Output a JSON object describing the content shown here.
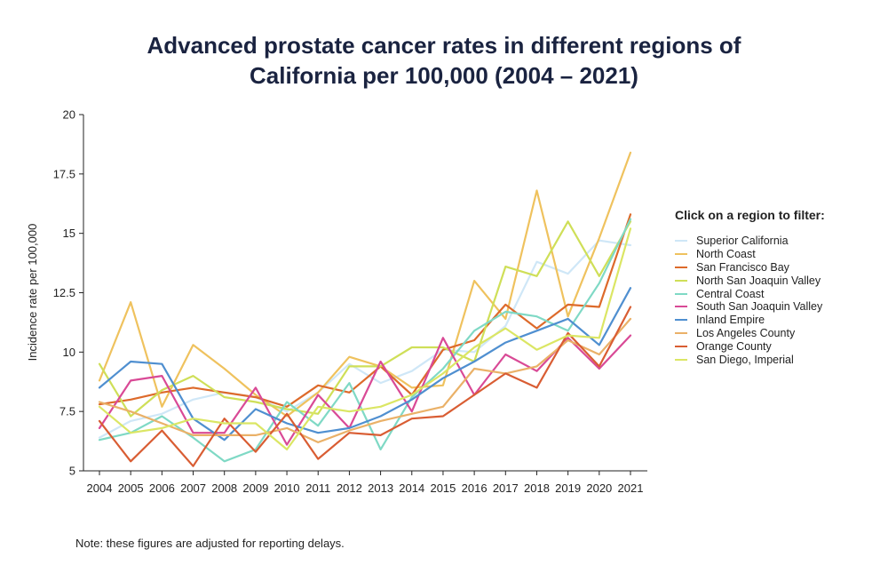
{
  "title_line1": "Advanced prostate cancer rates in different regions of",
  "title_line2": "California per 100,000 (2004 – 2021)",
  "legend_title": "Click on a region to filter:",
  "note": "Note: these figures are adjusted for reporting delays.",
  "chart_data": {
    "type": "line",
    "title": "Advanced prostate cancer rates in different regions of California per 100,000 (2004 – 2021)",
    "xlabel": "",
    "ylabel": "Incidence rate per 100,000",
    "ylim": [
      5,
      20
    ],
    "yticks": [
      5,
      7.5,
      10,
      12.5,
      15,
      17.5,
      20
    ],
    "ytick_labels": [
      "5",
      "7.5",
      "10",
      "12.5",
      "15",
      "17.5",
      "20"
    ],
    "x": [
      "2004",
      "2005",
      "2006",
      "2007",
      "2008",
      "2009",
      "2010",
      "2011",
      "2012",
      "2013",
      "2014",
      "2015",
      "2016",
      "2017",
      "2018",
      "2019",
      "2020",
      "2021"
    ],
    "legend_position": "right",
    "series": [
      {
        "name": "Superior California",
        "color": "#cfe7f7",
        "values": [
          6.4,
          7.1,
          7.4,
          8.0,
          8.3,
          8.1,
          7.5,
          8.3,
          9.5,
          8.7,
          9.2,
          10.1,
          10.0,
          11.1,
          13.8,
          13.3,
          14.7,
          14.5
        ]
      },
      {
        "name": "North Coast",
        "color": "#efc25e",
        "values": [
          8.8,
          12.1,
          7.7,
          10.3,
          9.3,
          8.2,
          7.3,
          8.3,
          9.8,
          9.4,
          8.5,
          8.6,
          13.0,
          11.4,
          16.8,
          11.5,
          14.8,
          18.4
        ]
      },
      {
        "name": "San Francisco Bay",
        "color": "#dd6a2b",
        "values": [
          7.8,
          8.0,
          8.3,
          8.5,
          8.3,
          8.1,
          7.7,
          8.6,
          8.3,
          9.4,
          8.2,
          10.1,
          10.5,
          12.0,
          11.0,
          12.0,
          11.9,
          15.8
        ]
      },
      {
        "name": "North San Joaquin Valley",
        "color": "#cfdf58",
        "values": [
          9.5,
          7.3,
          8.4,
          9.0,
          8.1,
          7.9,
          7.6,
          7.4,
          9.4,
          9.4,
          10.2,
          10.2,
          9.6,
          13.6,
          13.2,
          15.5,
          13.2,
          15.5
        ]
      },
      {
        "name": "Central Coast",
        "color": "#7fd9c5",
        "values": [
          6.3,
          6.6,
          7.3,
          6.4,
          5.4,
          5.9,
          7.9,
          6.9,
          8.7,
          5.9,
          8.1,
          9.3,
          10.9,
          11.7,
          11.5,
          10.9,
          12.9,
          15.6
        ]
      },
      {
        "name": "South San Joaquin Valley",
        "color": "#d94a96",
        "values": [
          6.8,
          8.8,
          9.0,
          6.6,
          6.6,
          8.5,
          6.1,
          8.2,
          6.8,
          9.6,
          7.5,
          10.6,
          8.2,
          9.9,
          9.2,
          10.6,
          9.3,
          10.7
        ]
      },
      {
        "name": "Inland Empire",
        "color": "#4f8fd0",
        "values": [
          8.5,
          9.6,
          9.5,
          7.2,
          6.3,
          7.6,
          7.0,
          6.6,
          6.8,
          7.3,
          8.0,
          8.9,
          9.6,
          10.4,
          10.9,
          11.4,
          10.3,
          12.7
        ]
      },
      {
        "name": "Los Angeles County",
        "color": "#eab168",
        "values": [
          7.9,
          7.5,
          7.0,
          6.5,
          6.5,
          6.5,
          6.8,
          6.2,
          6.7,
          7.1,
          7.4,
          7.7,
          9.3,
          9.1,
          9.4,
          10.5,
          9.9,
          11.4
        ]
      },
      {
        "name": "Orange County",
        "color": "#d95d33",
        "values": [
          7.1,
          5.4,
          6.7,
          5.2,
          7.2,
          5.8,
          7.4,
          5.5,
          6.6,
          6.5,
          7.2,
          7.3,
          8.2,
          9.1,
          8.5,
          10.8,
          9.4,
          11.9
        ]
      },
      {
        "name": "San Diego, Imperial",
        "color": "#dbe664",
        "values": [
          7.7,
          6.6,
          6.8,
          7.2,
          7.0,
          7.0,
          5.9,
          7.7,
          7.5,
          7.7,
          8.2,
          9.1,
          10.2,
          11.0,
          10.1,
          10.7,
          10.6,
          15.2
        ]
      }
    ]
  }
}
